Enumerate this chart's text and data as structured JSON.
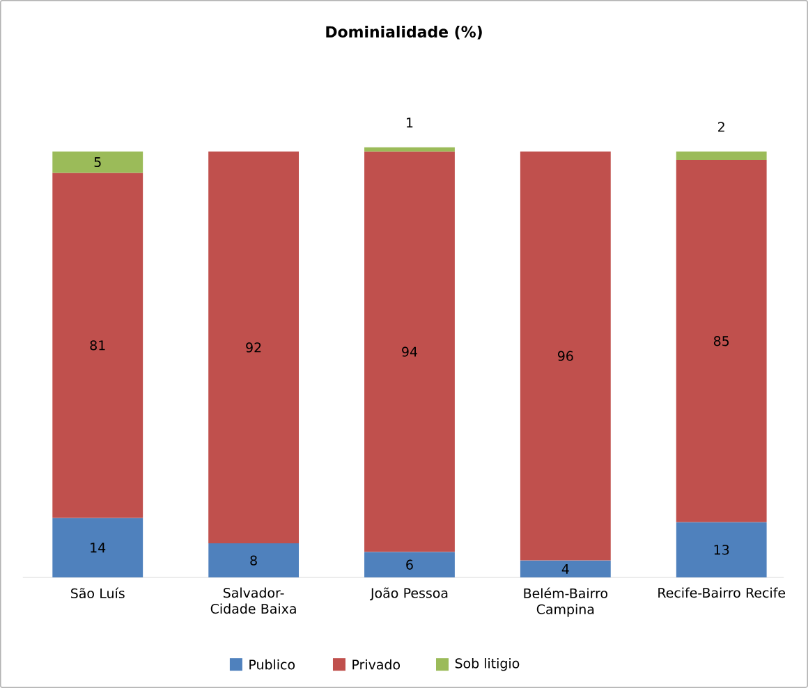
{
  "chart_data": {
    "type": "bar",
    "title": "Dominialidade (%)",
    "stacked": true,
    "data_labels": true,
    "legend": "bottom",
    "categories": [
      "São Luís",
      "Salvador-Cidade Baixa",
      "João Pessoa",
      "Belém-Bairro Campina",
      "Recife-Bairro Recife"
    ],
    "series": [
      {
        "name": "Publico",
        "color": "#4f81bd",
        "values": [
          14,
          8,
          6,
          4,
          13
        ]
      },
      {
        "name": "Privado",
        "color": "#c0504d",
        "values": [
          81,
          92,
          94,
          96,
          85
        ]
      },
      {
        "name": "Sob litigio",
        "color": "#9bbb59",
        "values": [
          5,
          null,
          1,
          null,
          2
        ]
      }
    ]
  }
}
